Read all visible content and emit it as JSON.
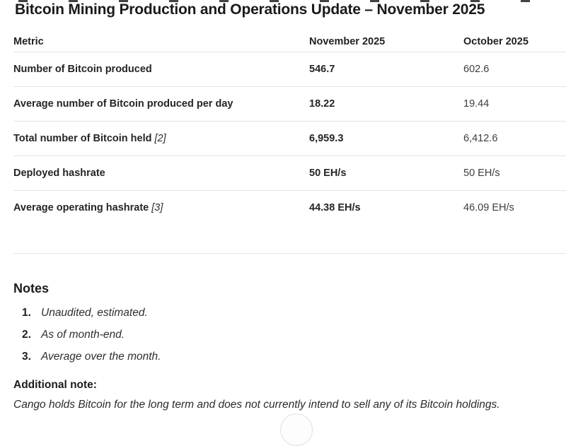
{
  "page": {
    "title": "Bitcoin Mining Production and Operations Update – November 2025"
  },
  "table": {
    "columns": [
      "Metric",
      "November 2025",
      "October 2025"
    ],
    "rows": [
      {
        "metric": "Number of Bitcoin produced",
        "nov": "546.7",
        "oct": "602.6"
      },
      {
        "metric": "Average number of Bitcoin produced per day",
        "nov": "18.22",
        "oct": "19.44"
      },
      {
        "metric": "Total number of Bitcoin held",
        "ref": "[2]",
        "nov": "6,959.3",
        "oct": "6,412.6"
      },
      {
        "metric": "Deployed hashrate",
        "nov": "50 EH/s",
        "oct": "50 EH/s"
      },
      {
        "metric": "Average operating hashrate",
        "ref": "[3]",
        "nov": "44.38 EH/s",
        "oct": "46.09 EH/s"
      }
    ]
  },
  "notes": {
    "heading": "Notes",
    "items": [
      {
        "num": "1.",
        "text": "Unaudited, estimated."
      },
      {
        "num": "2.",
        "text": "As of month-end."
      },
      {
        "num": "3.",
        "text": "Average over the month."
      }
    ]
  },
  "additional_note": {
    "heading": "Additional note:",
    "text": "Cango holds Bitcoin for the long term and does not currently intend to sell any of its Bitcoin holdings."
  }
}
